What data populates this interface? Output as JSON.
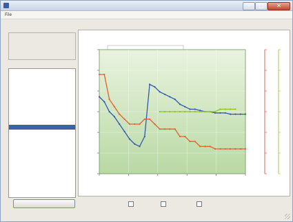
{
  "window": {
    "title": "",
    "accent": "#3a5f9c"
  },
  "menu": {
    "items": [
      "File",
      "",
      ""
    ]
  },
  "info": {
    "group_label": "",
    "lines": [
      "",
      "",
      "",
      ""
    ]
  },
  "list": {
    "group_label": "",
    "selected_index": 11,
    "items": [
      "",
      "",
      "",
      "",
      "",
      "",
      "",
      "",
      "",
      "",
      "",
      ""
    ]
  },
  "chart_data": {
    "type": "line",
    "title": "",
    "xlabel": "",
    "ylabel_left": "",
    "ylabel_right1": "",
    "ylabel_right2": "",
    "background": "gradient-green",
    "grid": true,
    "series": [
      {
        "color": "#2f56b0",
        "values": [
          62,
          58,
          50,
          46,
          40,
          34,
          28,
          24,
          22,
          30,
          72,
          70,
          66,
          64,
          62,
          60,
          56,
          54,
          52,
          52,
          51,
          50,
          50,
          49,
          49,
          49,
          48,
          48,
          48,
          48
        ]
      },
      {
        "color": "#e0602e",
        "values": [
          80,
          80,
          60,
          54,
          48,
          44,
          40,
          40,
          40,
          44,
          44,
          40,
          36,
          36,
          36,
          36,
          30,
          30,
          26,
          26,
          22,
          22,
          22,
          20,
          20,
          20,
          20,
          20,
          20,
          20
        ]
      },
      {
        "color": "#8fbf2a",
        "values": [
          null,
          null,
          null,
          null,
          null,
          null,
          null,
          null,
          null,
          null,
          null,
          null,
          50,
          50,
          50,
          50,
          50,
          50,
          50,
          50,
          50,
          50,
          50,
          50,
          52,
          52,
          52,
          52,
          null,
          null
        ]
      }
    ]
  },
  "buttons": {
    "bottom_label": ""
  },
  "options": [
    {
      "label": "",
      "checked": false
    },
    {
      "label": "",
      "checked": false
    },
    {
      "label": "",
      "checked": false
    }
  ],
  "colors": {
    "plot_top": "#e9f3df",
    "plot_bottom": "#b9d9a4",
    "right_axis1": "#d2452a",
    "right_axis2": "#8fbf2a"
  }
}
